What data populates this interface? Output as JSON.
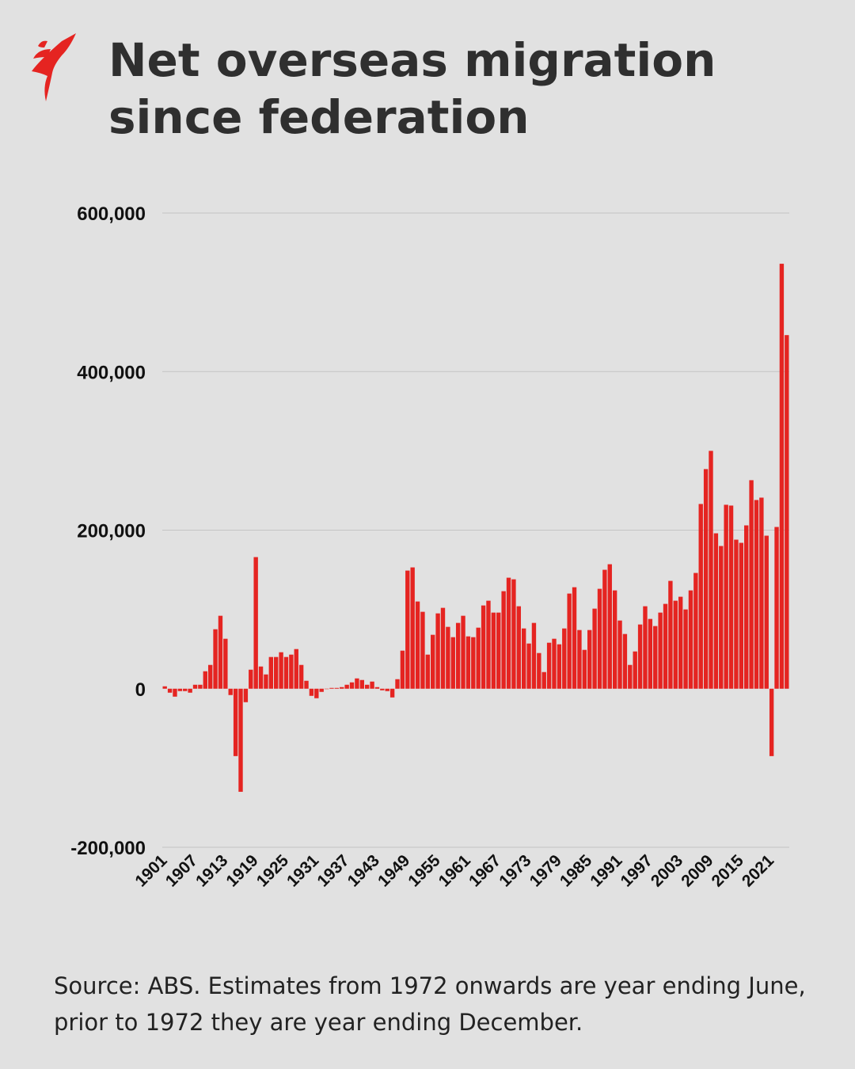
{
  "title": "Net overseas migration since federation",
  "source": "Source: ABS. Estimates from 1972 onwards are year ending June, prior to 1972 they are year ending December.",
  "logo": {
    "icon": "sbs-logo-icon",
    "color": "#e52421"
  },
  "chart_data": {
    "type": "bar",
    "title": "Net overseas migration since federation",
    "xlabel": "",
    "ylabel": "",
    "ylim": [
      -200000,
      600000
    ],
    "yticks": [
      "600,000",
      "400,000",
      "200,000",
      "0",
      "-200,000"
    ],
    "ytick_values": [
      600000,
      400000,
      200000,
      0,
      -200000
    ],
    "xticks": [
      "1901",
      "1907",
      "1913",
      "1919",
      "1925",
      "1931",
      "1937",
      "1943",
      "1949",
      "1955",
      "1961",
      "1967",
      "1973",
      "1979",
      "1985",
      "1991",
      "1997",
      "2003",
      "2009",
      "2015",
      "2021"
    ],
    "grid": true,
    "bar_color": "#e52421",
    "start_year": 1901,
    "values": [
      3000,
      -5000,
      -10000,
      -3000,
      -3000,
      -5000,
      5000,
      5000,
      22000,
      30000,
      75000,
      92000,
      63000,
      -8000,
      -85000,
      -130000,
      -17000,
      24000,
      166000,
      28000,
      18000,
      40000,
      40000,
      46000,
      40000,
      43000,
      50000,
      30000,
      10000,
      -9000,
      -12000,
      -4000,
      0,
      1000,
      1000,
      2000,
      5000,
      8000,
      13000,
      11000,
      5000,
      9000,
      2000,
      -2000,
      -3000,
      -11000,
      12000,
      48000,
      149000,
      153000,
      110000,
      97000,
      43000,
      68000,
      95000,
      102000,
      78000,
      65000,
      83000,
      92000,
      66000,
      65000,
      77000,
      105000,
      111000,
      96000,
      96000,
      123000,
      140000,
      138000,
      104000,
      76000,
      57000,
      83000,
      45000,
      21000,
      58000,
      63000,
      56000,
      76000,
      120000,
      128000,
      74000,
      49000,
      74000,
      101000,
      126000,
      150000,
      157000,
      124000,
      86000,
      69000,
      30000,
      47000,
      81000,
      104000,
      88000,
      79000,
      96000,
      107000,
      136000,
      111000,
      116000,
      100000,
      124000,
      146000,
      233000,
      277000,
      300000,
      196000,
      180000,
      232000,
      231000,
      188000,
      184000,
      206000,
      263000,
      238000,
      241000,
      193000,
      -85000,
      204000,
      536000,
      446000
    ]
  }
}
